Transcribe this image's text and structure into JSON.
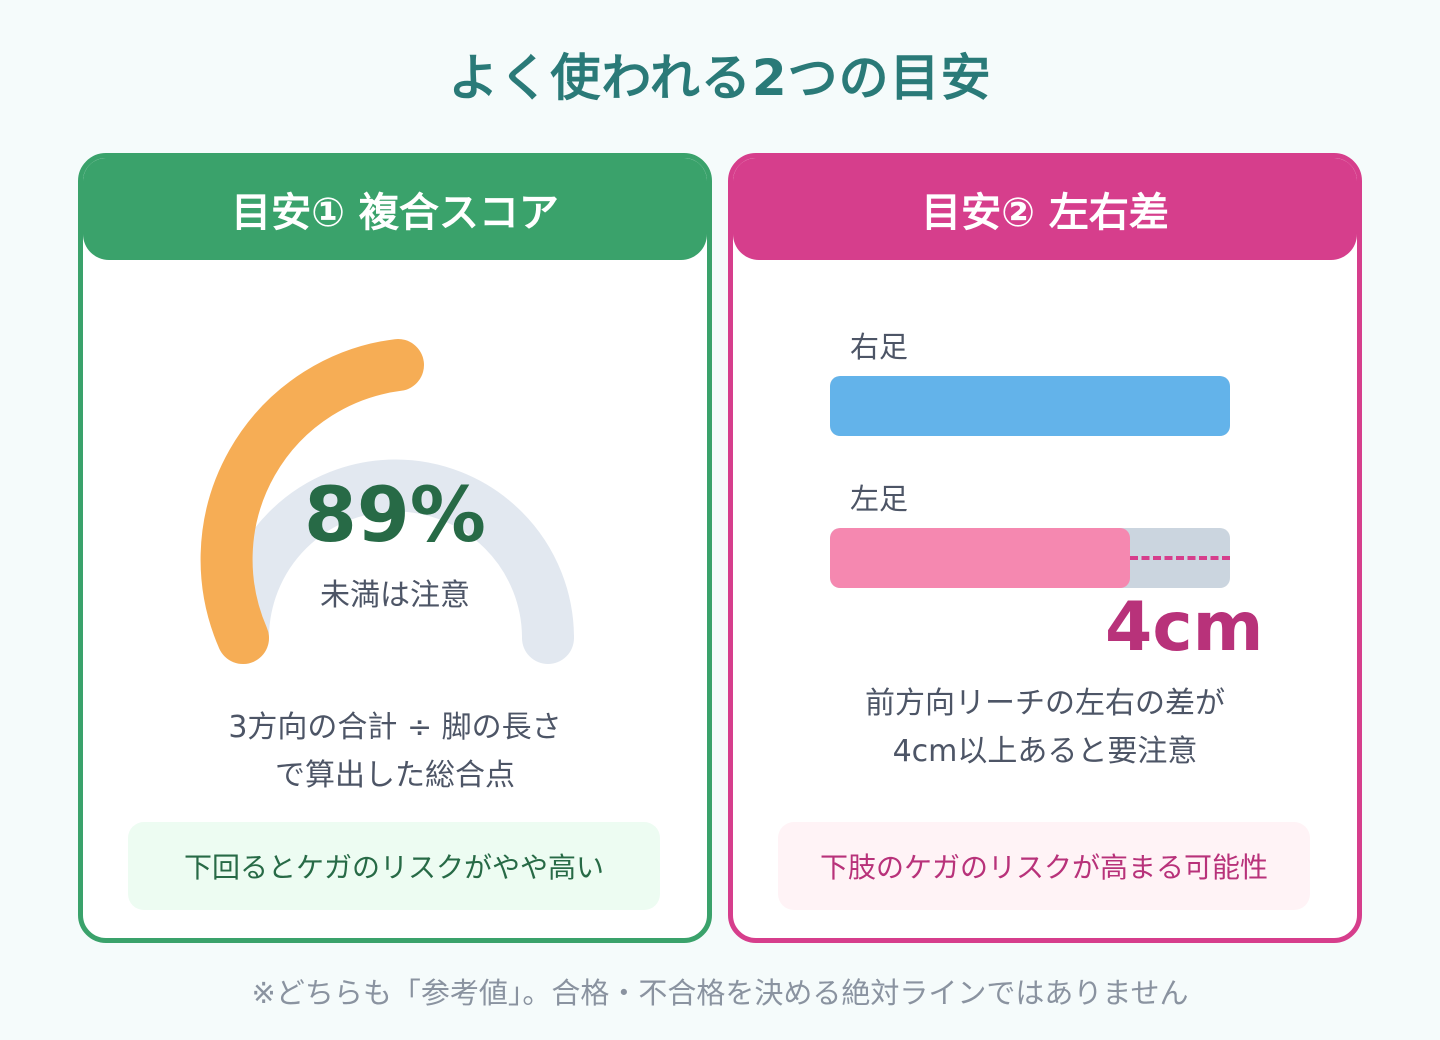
{
  "title": "よく使われる2つの目安",
  "card1": {
    "header": "目安① 複合スコア",
    "gauge": {
      "value_text": "89%",
      "value_fraction": 0.89,
      "caption": "未満は注意",
      "colors": {
        "arc": "#f6ad55",
        "track": "#e2e8f0"
      }
    },
    "desc_line1": "3方向の合計 ÷ 脚の長さ",
    "desc_line2": "で算出した総合点",
    "note": "下回るとケガのリスクがやや高い"
  },
  "card2": {
    "header": "目安② 左右差",
    "right_label": "右足",
    "left_label": "左足",
    "bars": {
      "right_fraction": 1.0,
      "left_fraction": 0.75
    },
    "diff_value": "4cm",
    "desc_line1": "前方向リーチの左右の差が",
    "desc_line2": "4cm以上あると要注意",
    "note": "下肢のケガのリスクが高まる可能性",
    "colors": {
      "right": "#63b3ea",
      "left": "#f588b0",
      "accent": "#d63e8c"
    }
  },
  "footer": "※どちらも「参考値」。合格・不合格を決める絶対ラインではありません"
}
